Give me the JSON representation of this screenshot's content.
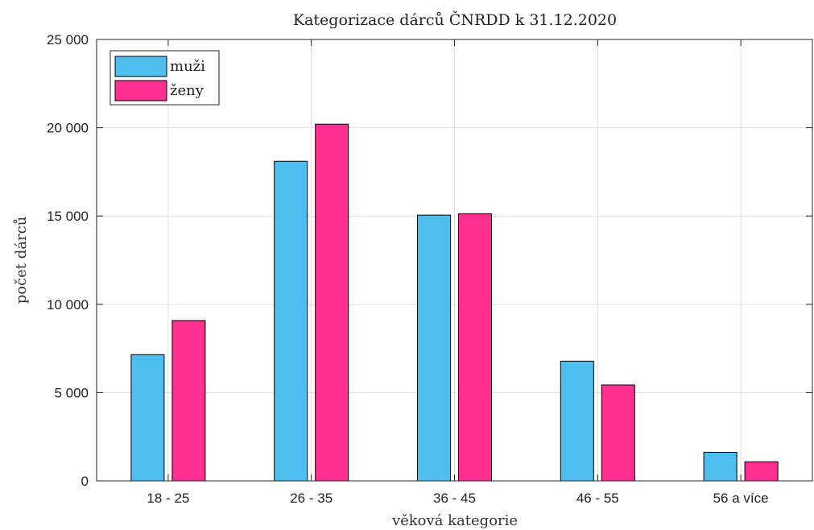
{
  "chart_data": {
    "type": "bar",
    "title": "Kategorizace dárců ČNRDD k 31.12.2020",
    "xlabel": "věková kategorie",
    "ylabel": "počet dárců",
    "categories": [
      "18 - 25",
      "26 - 35",
      "36 - 45",
      "46 - 55",
      "56 a více"
    ],
    "series": [
      {
        "name": "muži",
        "color": "#4dbeee",
        "values": [
          7150,
          18100,
          15050,
          6780,
          1620
        ]
      },
      {
        "name": "ženy",
        "color": "#ff2f92",
        "values": [
          9080,
          20200,
          15130,
          5430,
          1080
        ]
      }
    ],
    "ylim": [
      0,
      25000
    ],
    "yticks": [
      0,
      5000,
      10000,
      15000,
      20000,
      25000
    ],
    "ytick_labels": [
      "0",
      "5 000",
      "10 000",
      "15 000",
      "20 000",
      "25 000"
    ],
    "grid": true,
    "legend_position": "top-left"
  }
}
